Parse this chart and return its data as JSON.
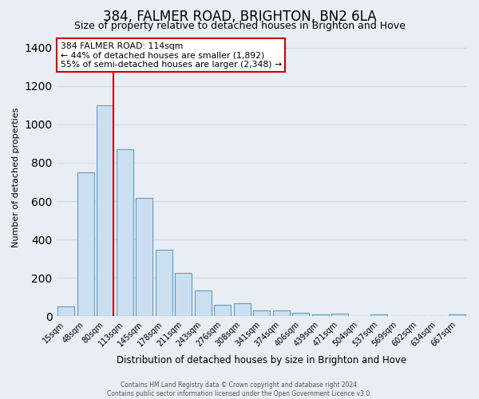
{
  "title": "384, FALMER ROAD, BRIGHTON, BN2 6LA",
  "subtitle": "Size of property relative to detached houses in Brighton and Hove",
  "xlabel": "Distribution of detached houses by size in Brighton and Hove",
  "ylabel": "Number of detached properties",
  "bar_labels": [
    "15sqm",
    "48sqm",
    "80sqm",
    "113sqm",
    "145sqm",
    "178sqm",
    "211sqm",
    "243sqm",
    "276sqm",
    "308sqm",
    "341sqm",
    "374sqm",
    "406sqm",
    "439sqm",
    "471sqm",
    "504sqm",
    "537sqm",
    "569sqm",
    "602sqm",
    "634sqm",
    "667sqm"
  ],
  "bar_values": [
    50,
    750,
    1100,
    870,
    615,
    345,
    225,
    135,
    60,
    70,
    30,
    30,
    20,
    10,
    15,
    0,
    10,
    0,
    0,
    0,
    10
  ],
  "bar_color": "#ccdff0",
  "bar_edge_color": "#5b9ec9",
  "vline_color": "#cc0000",
  "ylim": [
    0,
    1450
  ],
  "yticks": [
    0,
    200,
    400,
    600,
    800,
    1000,
    1200,
    1400
  ],
  "annotation_title": "384 FALMER ROAD: 114sqm",
  "annotation_line1": "← 44% of detached houses are smaller (1,892)",
  "annotation_line2": "55% of semi-detached houses are larger (2,348) →",
  "annotation_box_color": "white",
  "annotation_box_edge_color": "#cc0000",
  "footer_line1": "Contains HM Land Registry data © Crown copyright and database right 2024.",
  "footer_line2": "Contains public sector information licensed under the Open Government Licence v3.0.",
  "background_color": "#e8eef4",
  "grid_color": "#d0dce8",
  "title_fontsize": 12,
  "subtitle_fontsize": 9
}
